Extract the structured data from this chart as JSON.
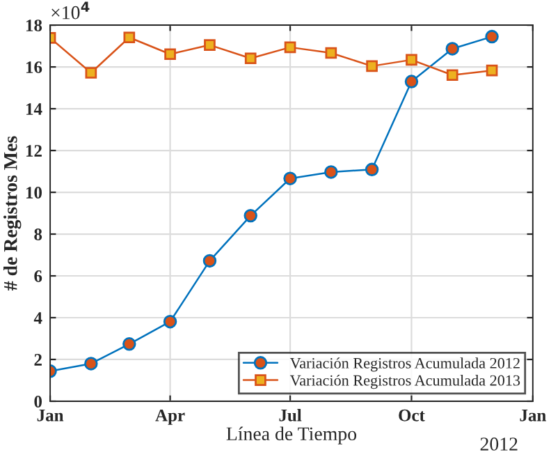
{
  "chart_data": {
    "type": "line",
    "xlabel": "Línea de Tiempo",
    "ylabel": "# de Registros Mes",
    "x": [
      "2012-01-01",
      "2012-02-01",
      "2012-03-01",
      "2012-04-01",
      "2012-05-01",
      "2012-06-01",
      "2012-07-01",
      "2012-08-01",
      "2012-09-01",
      "2012-10-01",
      "2012-11-01",
      "2012-12-01"
    ],
    "series": [
      {
        "name": "Variación Registros Acumulada 2012",
        "color": "#0072bd",
        "marker": "circle",
        "values": [
          1.44,
          1.8,
          2.74,
          3.81,
          6.72,
          8.88,
          10.66,
          10.97,
          11.09,
          15.3,
          16.87,
          17.45
        ]
      },
      {
        "name": "Variación Registros Acumulada 2013",
        "color": "#d95319",
        "marker": "square",
        "values": [
          17.39,
          15.72,
          17.41,
          16.61,
          17.05,
          16.41,
          16.94,
          16.67,
          16.04,
          16.34,
          15.61,
          15.83
        ]
      }
    ],
    "xlim": [
      "2012-01-01",
      "2013-01-01"
    ],
    "xticks": [
      {
        "value": "2012-01-01",
        "label": "Jan"
      },
      {
        "value": "2012-04-01",
        "label": "Apr"
      },
      {
        "value": "2012-07-01",
        "label": "Jul"
      },
      {
        "value": "2012-10-01",
        "label": "Oct"
      },
      {
        "value": "2013-01-01",
        "label": "Jan"
      }
    ],
    "ylim": [
      0,
      18
    ],
    "yticks": [
      0,
      2,
      4,
      6,
      8,
      10,
      12,
      14,
      16,
      18
    ],
    "annotations": [
      "×10$^{4}$",
      "2012"
    ],
    "grid": true,
    "legend": "bottom right"
  }
}
